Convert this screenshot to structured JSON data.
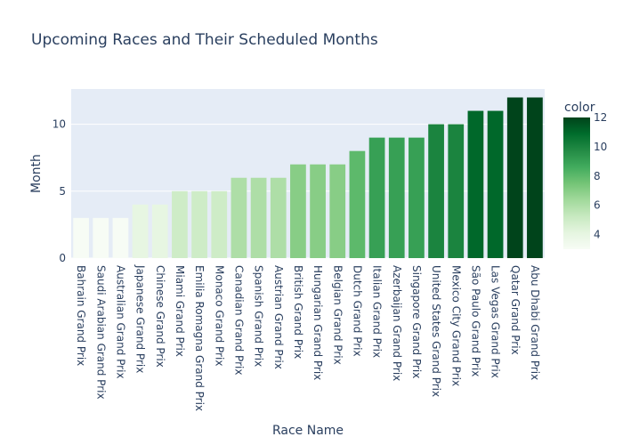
{
  "chart_data": {
    "type": "bar",
    "title": "Upcoming Races and Their Scheduled Months",
    "xlabel": "Race Name",
    "ylabel": "Month",
    "ylim": [
      0,
      12.632
    ],
    "yticks": [
      0,
      5,
      10
    ],
    "categories": [
      "Bahrain Grand Prix",
      "Saudi Arabian Grand Prix",
      "Australian Grand Prix",
      "Japanese Grand Prix",
      "Chinese Grand Prix",
      "Miami Grand Prix",
      "Emilia Romagna Grand Prix",
      "Monaco Grand Prix",
      "Canadian Grand Prix",
      "Spanish Grand Prix",
      "Austrian Grand Prix",
      "British Grand Prix",
      "Hungarian Grand Prix",
      "Belgian Grand Prix",
      "Dutch Grand Prix",
      "Italian Grand Prix",
      "Azerbaijan Grand Prix",
      "Singapore Grand Prix",
      "United States Grand Prix",
      "Mexico City Grand Prix",
      "São Paulo Grand Prix",
      "Las Vegas Grand Prix",
      "Qatar Grand Prix",
      "Abu Dhabi Grand Prix"
    ],
    "values": [
      3,
      3,
      3,
      4,
      4,
      5,
      5,
      5,
      6,
      6,
      6,
      7,
      7,
      7,
      8,
      9,
      9,
      9,
      10,
      10,
      11,
      11,
      12,
      12
    ],
    "colorbar": {
      "title": "color",
      "min": 3,
      "max": 12,
      "ticks": [
        4,
        6,
        8,
        10,
        12
      ]
    },
    "colorscale": [
      "#f7fcf5",
      "#e5f5e0",
      "#c7e9c0",
      "#a1d99b",
      "#74c476",
      "#41ab5d",
      "#238b45",
      "#006d2c",
      "#00441b"
    ],
    "plot_background": "#e5ecf6",
    "gridline_color": "#ffffff"
  }
}
